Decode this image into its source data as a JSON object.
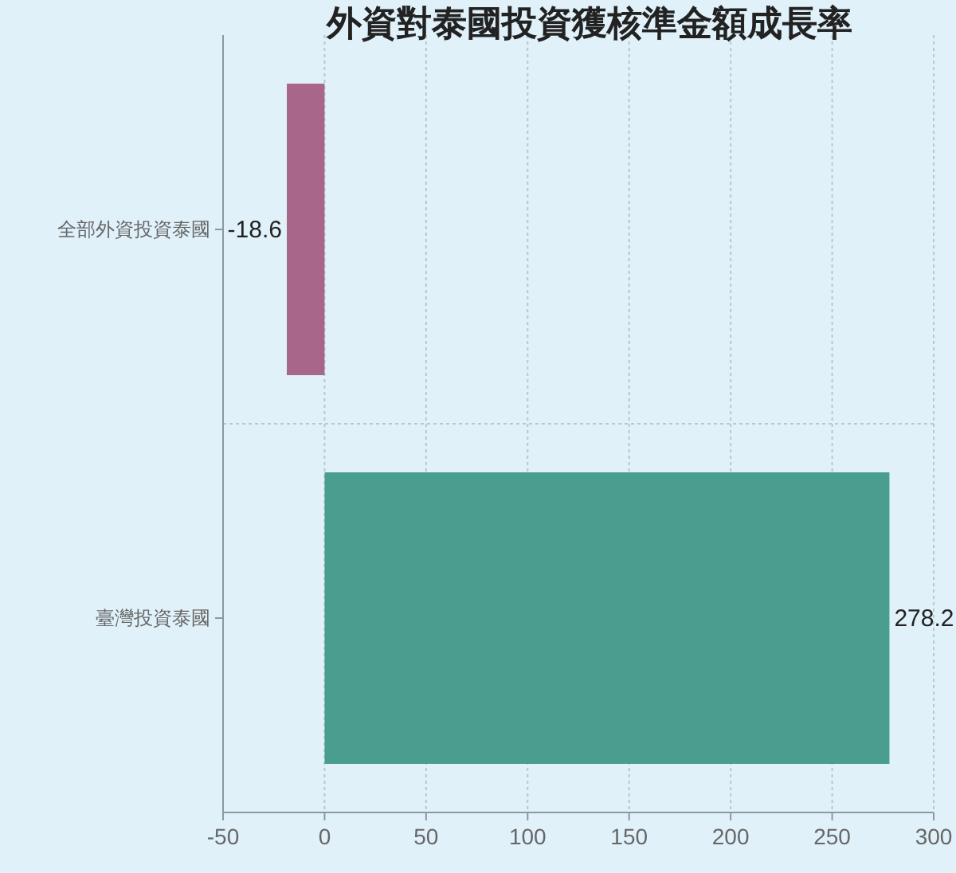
{
  "chart_data": {
    "type": "bar",
    "orientation": "horizontal",
    "title": "外資對泰國投資獲核準金額成長率",
    "categories": [
      "全部外資投資泰國",
      "臺灣投資泰國"
    ],
    "values": [
      -18.6,
      278.2
    ],
    "colors": [
      "#a8668a",
      "#4a9e8f"
    ],
    "xlim": [
      -50,
      300
    ],
    "xticks": [
      -50,
      0,
      50,
      100,
      150,
      200,
      250,
      300
    ],
    "grid": true,
    "data_labels": true
  }
}
